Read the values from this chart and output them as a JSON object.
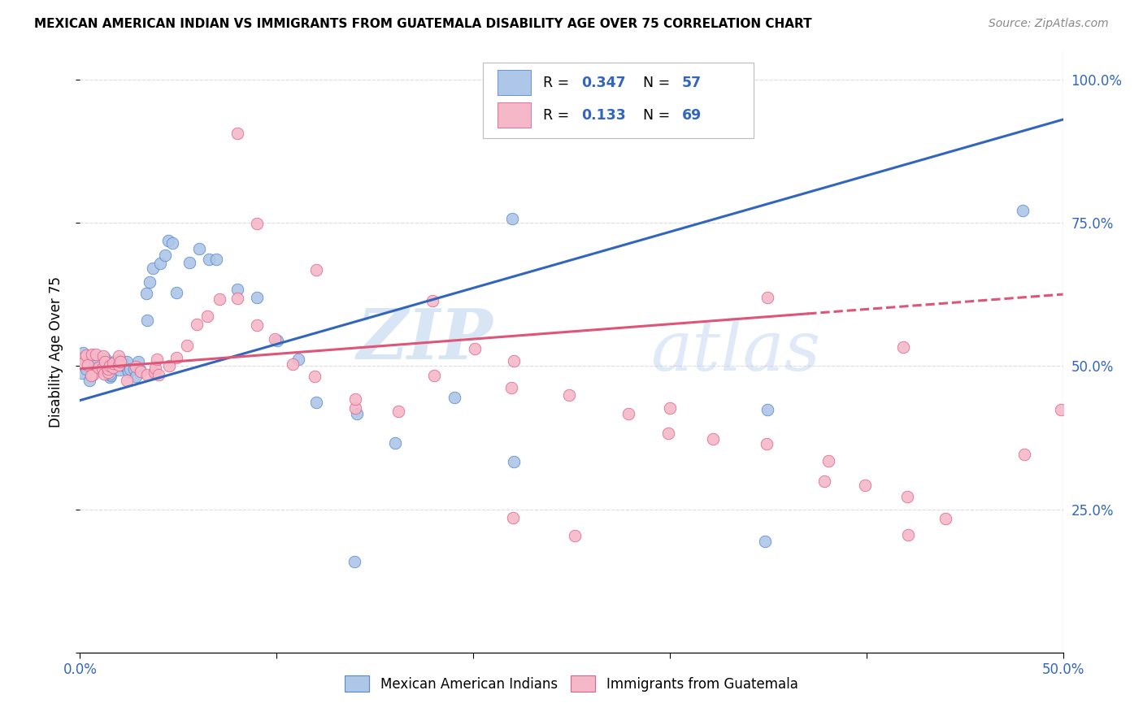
{
  "title": "MEXICAN AMERICAN INDIAN VS IMMIGRANTS FROM GUATEMALA DISABILITY AGE OVER 75 CORRELATION CHART",
  "source": "Source: ZipAtlas.com",
  "ylabel": "Disability Age Over 75",
  "legend_r1": "0.347",
  "legend_n1": "57",
  "legend_r2": "0.133",
  "legend_n2": "69",
  "legend_label1": "Mexican American Indians",
  "legend_label2": "Immigrants from Guatemala",
  "blue_color": "#aec6e8",
  "pink_color": "#f5b8c8",
  "blue_edge_color": "#5588cc",
  "pink_edge_color": "#e0608a",
  "blue_line_color": "#3366bb",
  "pink_line_color": "#dd5577",
  "watermark_zip": "ZIP",
  "watermark_atlas": "atlas",
  "xlim": [
    0.0,
    0.5
  ],
  "ylim": [
    0.0,
    1.05
  ],
  "blue_line_y0": 0.44,
  "blue_line_y1": 0.93,
  "pink_line_y0": 0.495,
  "pink_line_y1": 0.625,
  "pink_line_solid_x": 0.37,
  "blue_pts_x": [
    0.001,
    0.002,
    0.003,
    0.004,
    0.005,
    0.006,
    0.007,
    0.008,
    0.009,
    0.01,
    0.011,
    0.012,
    0.013,
    0.014,
    0.015,
    0.016,
    0.017,
    0.018,
    0.019,
    0.02,
    0.021,
    0.022,
    0.023,
    0.024,
    0.025,
    0.026,
    0.027,
    0.028,
    0.029,
    0.03,
    0.032,
    0.034,
    0.036,
    0.038,
    0.04,
    0.042,
    0.045,
    0.048,
    0.05,
    0.055,
    0.06,
    0.065,
    0.07,
    0.08,
    0.09,
    0.1,
    0.11,
    0.12,
    0.14,
    0.16,
    0.19,
    0.22,
    0.35,
    0.22,
    0.35,
    0.48,
    0.14
  ],
  "blue_pts_y": [
    0.5,
    0.5,
    0.5,
    0.5,
    0.5,
    0.5,
    0.5,
    0.5,
    0.5,
    0.5,
    0.5,
    0.5,
    0.5,
    0.5,
    0.5,
    0.5,
    0.5,
    0.5,
    0.5,
    0.5,
    0.5,
    0.5,
    0.5,
    0.5,
    0.5,
    0.5,
    0.5,
    0.5,
    0.5,
    0.5,
    0.58,
    0.62,
    0.64,
    0.66,
    0.68,
    0.7,
    0.72,
    0.74,
    0.65,
    0.7,
    0.72,
    0.68,
    0.7,
    0.64,
    0.6,
    0.55,
    0.5,
    0.45,
    0.42,
    0.38,
    0.45,
    0.32,
    0.22,
    0.75,
    0.42,
    0.78,
    0.18
  ],
  "pink_pts_x": [
    0.001,
    0.002,
    0.003,
    0.004,
    0.005,
    0.006,
    0.007,
    0.008,
    0.009,
    0.01,
    0.011,
    0.012,
    0.013,
    0.014,
    0.015,
    0.016,
    0.017,
    0.018,
    0.019,
    0.02,
    0.022,
    0.025,
    0.028,
    0.03,
    0.032,
    0.035,
    0.038,
    0.04,
    0.042,
    0.045,
    0.05,
    0.055,
    0.06,
    0.065,
    0.07,
    0.08,
    0.09,
    0.1,
    0.11,
    0.12,
    0.14,
    0.16,
    0.18,
    0.2,
    0.22,
    0.25,
    0.28,
    0.3,
    0.32,
    0.35,
    0.38,
    0.4,
    0.42,
    0.44,
    0.09,
    0.12,
    0.18,
    0.22,
    0.35,
    0.38,
    0.42,
    0.08,
    0.25,
    0.3,
    0.14,
    0.22,
    0.42,
    0.48,
    0.5
  ],
  "pink_pts_y": [
    0.5,
    0.5,
    0.5,
    0.5,
    0.5,
    0.5,
    0.5,
    0.5,
    0.5,
    0.5,
    0.5,
    0.5,
    0.5,
    0.5,
    0.5,
    0.5,
    0.5,
    0.5,
    0.5,
    0.5,
    0.5,
    0.5,
    0.5,
    0.5,
    0.5,
    0.5,
    0.5,
    0.5,
    0.5,
    0.5,
    0.52,
    0.54,
    0.56,
    0.58,
    0.6,
    0.62,
    0.58,
    0.55,
    0.5,
    0.48,
    0.44,
    0.42,
    0.48,
    0.5,
    0.44,
    0.46,
    0.42,
    0.4,
    0.38,
    0.36,
    0.32,
    0.3,
    0.28,
    0.26,
    0.75,
    0.68,
    0.62,
    0.52,
    0.62,
    0.32,
    0.55,
    0.88,
    0.22,
    0.44,
    0.42,
    0.2,
    0.22,
    0.35,
    0.42
  ],
  "grid_color": "#dddddd",
  "grid_style": "--"
}
